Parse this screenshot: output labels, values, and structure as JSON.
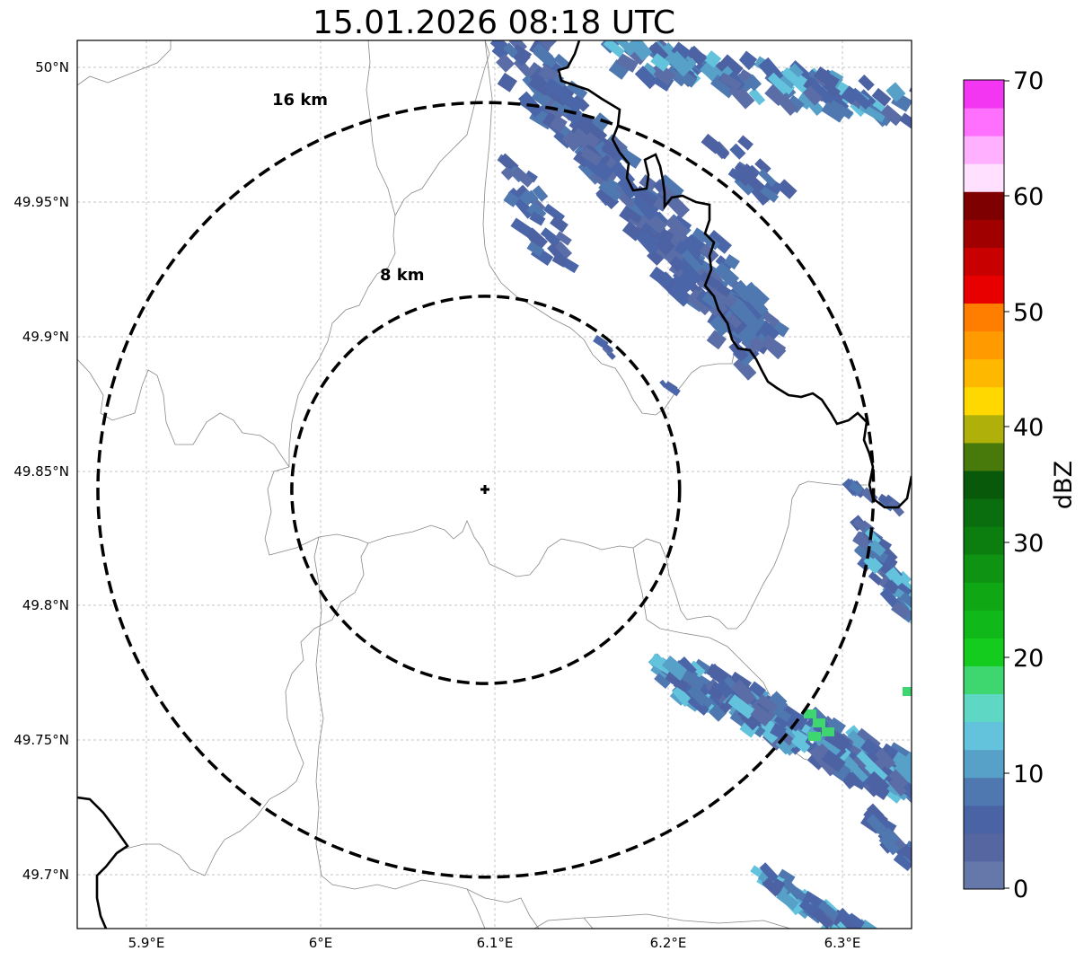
{
  "title": "15.01.2026 08:18 UTC",
  "map": {
    "lat_ticks": [
      "50°N",
      "49.95°N",
      "49.9°N",
      "49.85°N",
      "49.8°N",
      "49.75°N",
      "49.7°N"
    ],
    "lon_ticks": [
      "5.9°E",
      "6°E",
      "6.1°E",
      "6.2°E",
      "6.3°E"
    ],
    "extent": {
      "lon_min": 5.86,
      "lon_max": 6.34,
      "lat_min": 49.68,
      "lat_max": 50.01
    },
    "radar_site": {
      "lon": 6.095,
      "lat": 49.843
    },
    "range_rings": [
      {
        "label": "8 km",
        "radius_km": 8
      },
      {
        "label": "16 km",
        "radius_km": 16
      }
    ],
    "gridlines": true
  },
  "colorbar": {
    "label": "dBZ",
    "min": 0,
    "max": 70,
    "ticks": [
      "70",
      "60",
      "50",
      "40",
      "30",
      "20",
      "10",
      "0"
    ],
    "colors": [
      "#6677aa",
      "#5566a0",
      "#4a63a5",
      "#4f78b0",
      "#57a0c8",
      "#63c2dc",
      "#5ed8c4",
      "#3ed66e",
      "#13cc1e",
      "#11b81a",
      "#0fa814",
      "#0e9312",
      "#0c7e10",
      "#0a6e0e",
      "#085a0a",
      "#477a0a",
      "#b0b00a",
      "#ffd800",
      "#ffb800",
      "#ff9a00",
      "#ff7e00",
      "#e80000",
      "#c80000",
      "#a00000",
      "#7e0000",
      "#ffe0ff",
      "#ffb0ff",
      "#ff70ff",
      "#f236f2"
    ]
  }
}
